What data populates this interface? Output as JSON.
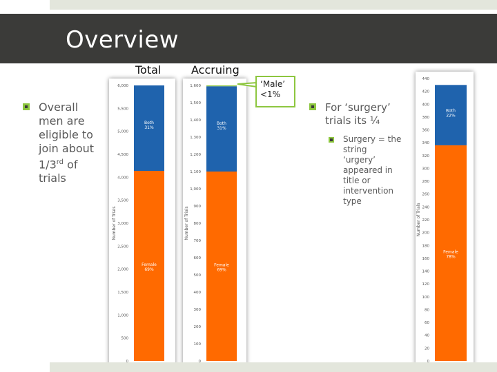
{
  "slide": {
    "title": "Overview",
    "left_bullet": {
      "lines": [
        "Overall",
        "men are",
        "eligible to",
        "join about"
      ],
      "frac_num": "1/3",
      "frac_sup": "rd",
      "frac_tail": " of",
      "last_line": "trials"
    },
    "right_bullet": {
      "lines": [
        "For ‘surgery’",
        "trials its ¼"
      ]
    },
    "sub_bullet": {
      "lines": [
        "Surgery = the",
        "string",
        "‘urgery’",
        "appeared in",
        "title or",
        "intervention",
        "type"
      ]
    },
    "callout": {
      "line1": "‘Male’",
      "line2": "<1%"
    },
    "colors": {
      "female": "#ff6a00",
      "both": "#1f63ad",
      "male": "#8dc63f",
      "banner": "#3b3b39",
      "accent": "#8dc63f"
    }
  },
  "chart_data": [
    {
      "type": "bar",
      "title": "Total",
      "ylabel": "Number of Trials",
      "ylim": [
        0,
        6000
      ],
      "yticks": [
        "0",
        "500",
        "1,000",
        "1,500",
        "2,000",
        "2,500",
        "3,000",
        "3,500",
        "4,000",
        "4,500",
        "5,000",
        "5,500",
        "6,000"
      ],
      "ytick_values": [
        0,
        500,
        1000,
        1500,
        2000,
        2500,
        3000,
        3500,
        4000,
        4500,
        5000,
        5500,
        6000
      ],
      "series": [
        {
          "name": "Female",
          "value": 4140,
          "label_line1": "Female",
          "label_line2": "69%"
        },
        {
          "name": "Both",
          "value": 1860,
          "label_line1": "Both",
          "label_line2": "31%"
        }
      ]
    },
    {
      "type": "bar",
      "title": "Accruing",
      "ylabel": "Number of Trials",
      "ylim": [
        0,
        1600
      ],
      "yticks": [
        "0",
        "100",
        "200",
        "300",
        "400",
        "500",
        "600",
        "700",
        "800",
        "900",
        "1,000",
        "1,100",
        "1,200",
        "1,300",
        "1,400",
        "1,500",
        "1,600"
      ],
      "ytick_values": [
        0,
        100,
        200,
        300,
        400,
        500,
        600,
        700,
        800,
        900,
        1000,
        1100,
        1200,
        1300,
        1400,
        1500,
        1600
      ],
      "series": [
        {
          "name": "Female",
          "value": 1100,
          "label_line1": "Female",
          "label_line2": "69%"
        },
        {
          "name": "Both",
          "value": 495,
          "label_line1": "Both",
          "label_line2": "31%"
        },
        {
          "name": "Male",
          "value": 5,
          "label_line1": "",
          "label_line2": ""
        }
      ]
    },
    {
      "type": "bar",
      "title": "",
      "ylabel": "Number of Trials",
      "ylim": [
        0,
        440
      ],
      "yticks": [
        "0",
        "20",
        "40",
        "60",
        "80",
        "100",
        "120",
        "140",
        "160",
        "180",
        "200",
        "220",
        "240",
        "260",
        "280",
        "300",
        "320",
        "340",
        "360",
        "380",
        "400",
        "420",
        "440"
      ],
      "ytick_values": [
        0,
        20,
        40,
        60,
        80,
        100,
        120,
        140,
        160,
        180,
        200,
        220,
        240,
        260,
        280,
        300,
        320,
        340,
        360,
        380,
        400,
        420,
        440
      ],
      "series": [
        {
          "name": "Female",
          "value": 336,
          "label_line1": "Female",
          "label_line2": "78%"
        },
        {
          "name": "Both",
          "value": 94,
          "label_line1": "Both",
          "label_line2": "22%"
        }
      ]
    }
  ]
}
